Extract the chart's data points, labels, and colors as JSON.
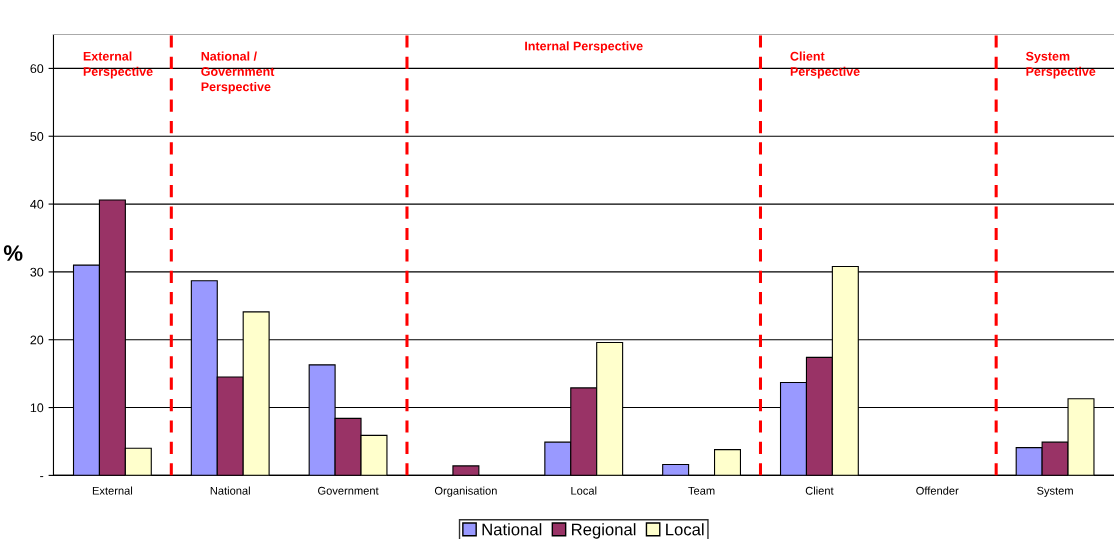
{
  "chart_data": {
    "type": "bar",
    "ylabel": "%",
    "categories": [
      "External",
      "National",
      "Government",
      "Organisation",
      "Local",
      "Team",
      "Client",
      "Offender",
      "System"
    ],
    "series": [
      {
        "name": "National",
        "color": "#9999ff",
        "values": [
          31.0,
          28.7,
          16.3,
          null,
          4.9,
          1.6,
          13.7,
          null,
          4.1
        ]
      },
      {
        "name": "Regional",
        "color": "#993366",
        "values": [
          40.6,
          14.5,
          8.4,
          1.4,
          12.9,
          null,
          17.4,
          null,
          4.9
        ]
      },
      {
        "name": "Local",
        "color": "#ffffcc",
        "values": [
          4.0,
          24.1,
          5.9,
          null,
          19.6,
          3.8,
          30.8,
          null,
          11.3
        ]
      }
    ],
    "ylim": [
      0,
      65
    ],
    "yticks": [
      {
        "value": 0,
        "label": "-"
      },
      10,
      20,
      30,
      40,
      50,
      60
    ],
    "grid": "y",
    "legend": "bottom",
    "annotations": [
      "External\nPerspective",
      "National /\nGovernment\nPerspective",
      "Internal Perspective",
      "Client\nPerspective",
      "System\nPerspective"
    ]
  }
}
